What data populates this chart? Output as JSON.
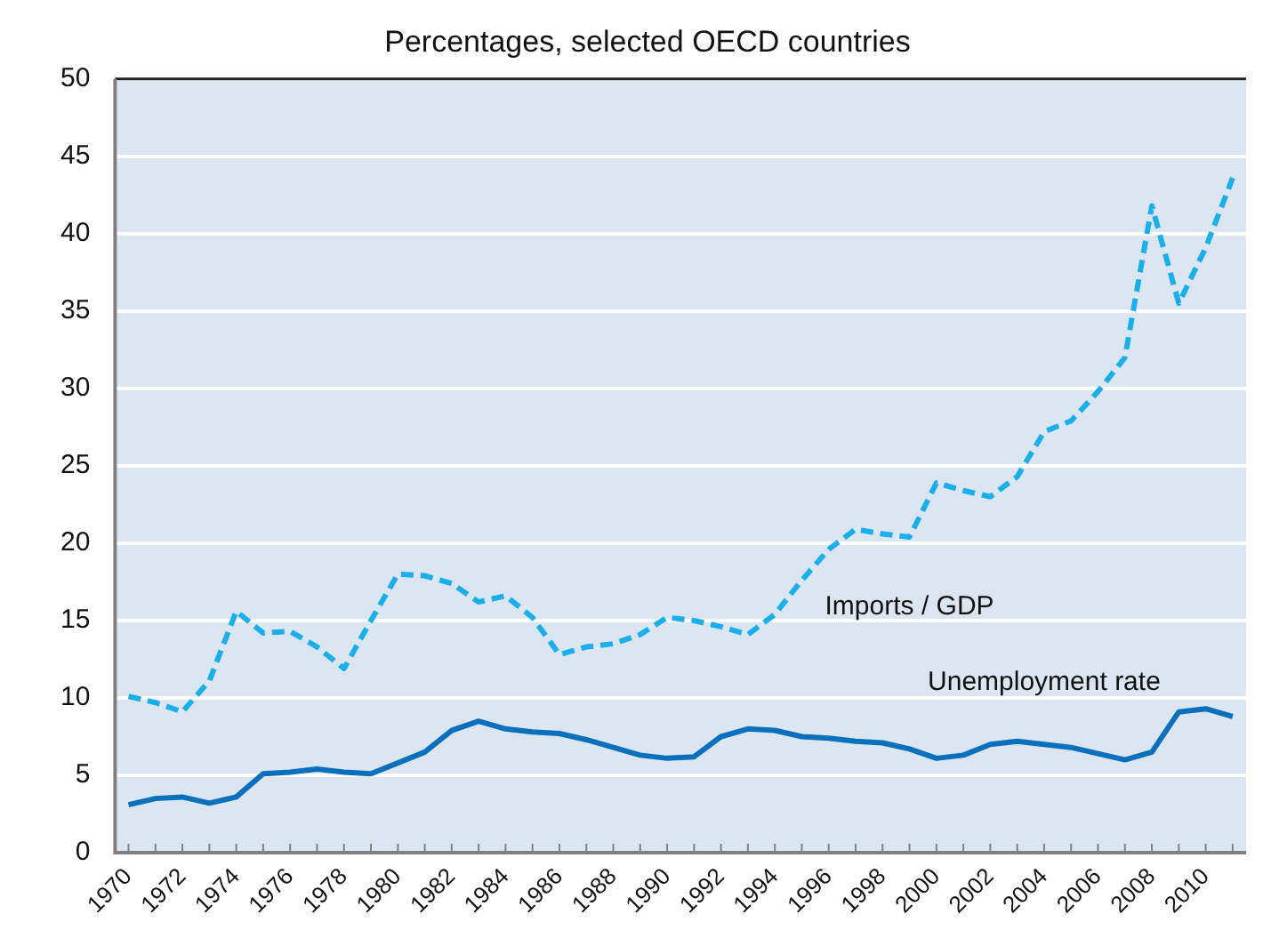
{
  "chart_data": {
    "type": "line",
    "title": "Percentages, selected OECD countries",
    "categories": [
      "1970",
      null,
      "1972",
      null,
      "1974",
      null,
      "1976",
      null,
      "1978",
      null,
      "1980",
      null,
      "1982",
      null,
      "1984",
      null,
      "1986",
      null,
      "1988",
      null,
      "1990",
      null,
      "1992",
      null,
      "1994",
      null,
      "1996",
      null,
      "1998",
      null,
      "2000",
      null,
      "2002",
      null,
      "2004",
      null,
      "2006",
      null,
      "2008",
      null,
      "2010",
      null
    ],
    "series": [
      {
        "name": "Imports / GDP",
        "color": "#1aaeea",
        "line_style": "dashed",
        "values": [
          10.1,
          9.7,
          9.1,
          11.1,
          15.6,
          14.2,
          14.3,
          13.3,
          11.9,
          15.0,
          18.0,
          17.9,
          17.4,
          16.2,
          16.6,
          15.2,
          12.8,
          13.3,
          13.5,
          14.1,
          15.2,
          15.0,
          14.6,
          14.1,
          15.4,
          17.6,
          19.6,
          20.9,
          20.6,
          20.4,
          23.9,
          23.4,
          23.0,
          24.3,
          27.2,
          27.9,
          29.8,
          32.0,
          41.8,
          35.5,
          39.1,
          43.6
        ]
      },
      {
        "name": "Unemployment rate",
        "color": "#0a70be",
        "line_style": "solid",
        "values": [
          3.1,
          3.5,
          3.6,
          3.2,
          3.6,
          5.1,
          5.2,
          5.4,
          5.2,
          5.1,
          5.8,
          6.5,
          7.9,
          8.5,
          8.0,
          7.8,
          7.7,
          7.3,
          6.8,
          6.3,
          6.1,
          6.2,
          7.5,
          8.0,
          7.9,
          7.5,
          7.4,
          7.2,
          7.1,
          6.7,
          6.1,
          6.3,
          7.0,
          7.2,
          7.0,
          6.8,
          6.4,
          6.0,
          6.5,
          9.1,
          9.3,
          8.8
        ]
      }
    ],
    "ylim": [
      0,
      50
    ],
    "yticks": [
      0,
      5,
      10,
      15,
      20,
      25,
      30,
      35,
      40,
      45,
      50
    ],
    "grid": "y",
    "legend": false,
    "marker": "none"
  }
}
